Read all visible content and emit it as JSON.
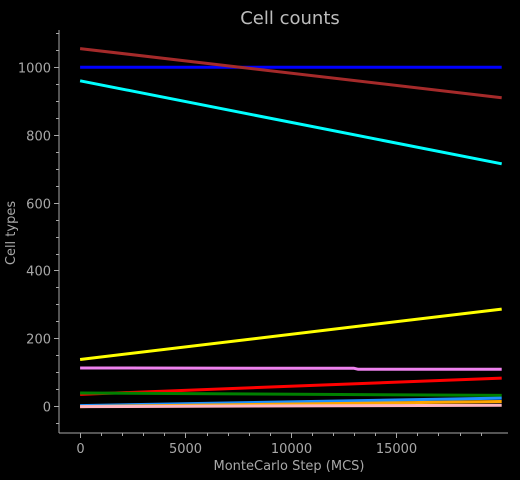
{
  "chart_data": {
    "type": "line",
    "title": "Cell counts",
    "xlabel": "MonteCarlo Step (MCS)",
    "ylabel": "Cell types",
    "xlim": [
      -1000,
      20300
    ],
    "ylim": [
      -80,
      1110
    ],
    "xticks": [
      0,
      5000,
      10000,
      15000
    ],
    "yticks": [
      0,
      200,
      400,
      600,
      800,
      1000
    ],
    "grid": false,
    "legend": "none",
    "axis_color": "#a8a8a8",
    "background": "#000000",
    "series": [
      {
        "color": "#0000ff",
        "x": [
          0,
          20000
        ],
        "y": [
          1000,
          1000
        ]
      },
      {
        "color": "#a52a2a",
        "x": [
          0,
          20000
        ],
        "y": [
          1055,
          910
        ]
      },
      {
        "color": "#00ffff",
        "x": [
          0,
          20000
        ],
        "y": [
          960,
          715
        ]
      },
      {
        "color": "#ffff00",
        "x": [
          0,
          20000
        ],
        "y": [
          137,
          286
        ]
      },
      {
        "color": "#ee82ee",
        "x": [
          0,
          13000,
          13200,
          20000
        ],
        "y": [
          112,
          111,
          108,
          108
        ]
      },
      {
        "color": "#ff0000",
        "x": [
          0,
          20000
        ],
        "y": [
          34,
          82
        ]
      },
      {
        "color": "#008000",
        "x": [
          0,
          20000
        ],
        "y": [
          38,
          31
        ]
      },
      {
        "color": "#1e90ff",
        "x": [
          0,
          20000
        ],
        "y": [
          1,
          23
        ]
      },
      {
        "color": "#ffa500",
        "x": [
          0,
          20000
        ],
        "y": [
          -2,
          13
        ]
      },
      {
        "color": "#ffb6c1",
        "x": [
          0,
          20000
        ],
        "y": [
          -2,
          2
        ]
      }
    ]
  }
}
